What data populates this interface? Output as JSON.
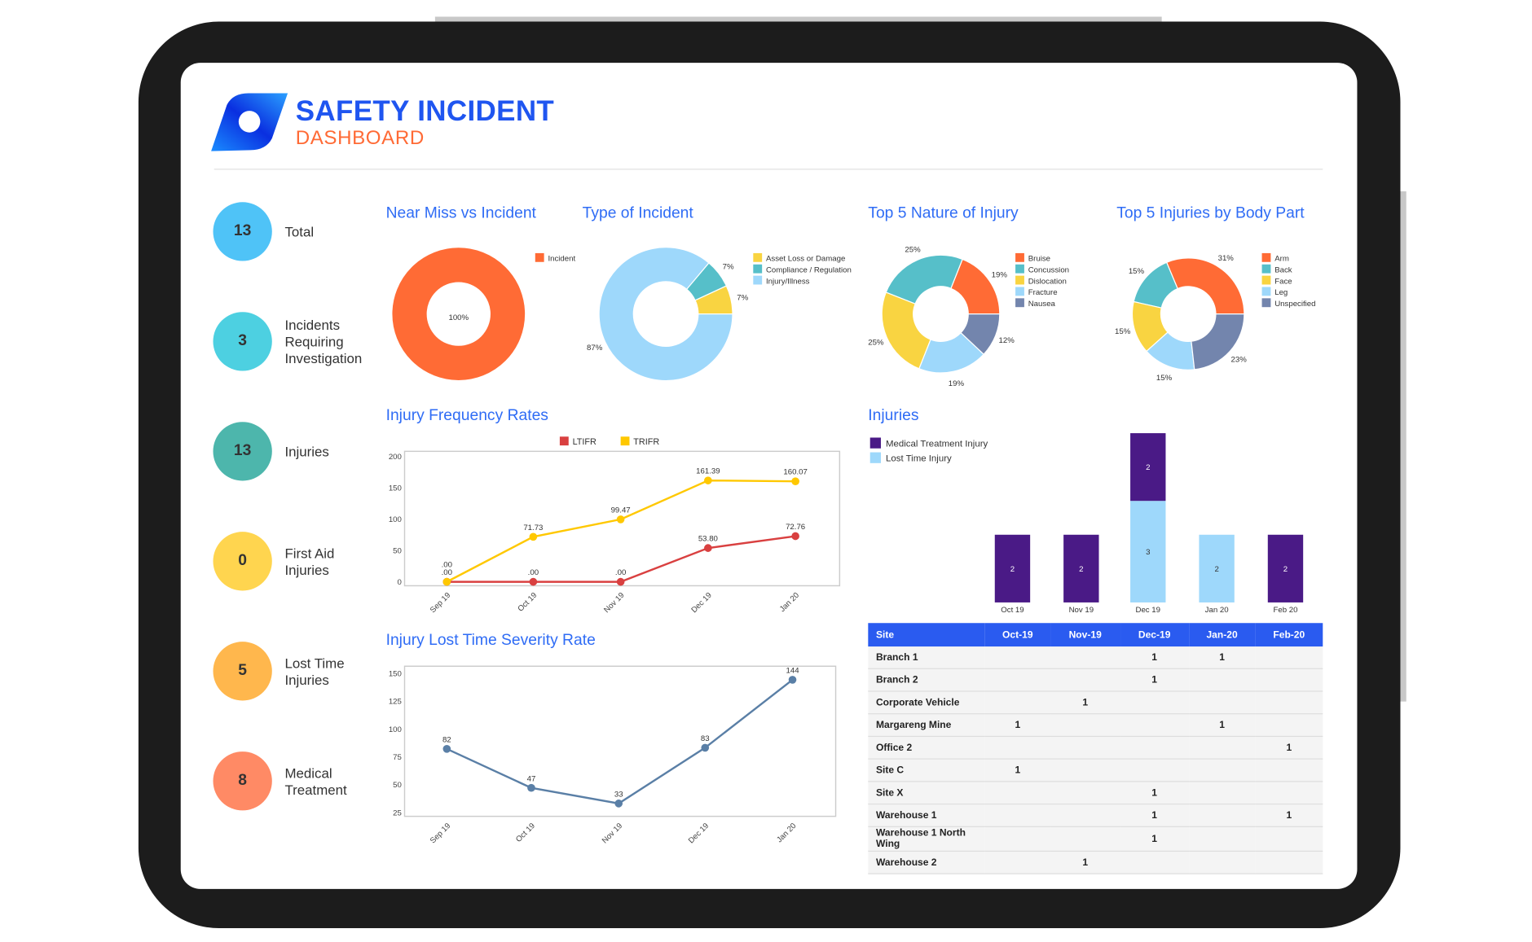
{
  "header": {
    "title": "SAFETY INCIDENT",
    "subtitle": "DASHBOARD"
  },
  "colors": {
    "brand_blue": "#1f55f0",
    "brand_orange": "#ff6a35",
    "section_title": "#2f6cf5",
    "table_header": "#2a5bf0"
  },
  "kpis": [
    {
      "value": "13",
      "label": "Total",
      "color": "#4fc3f7"
    },
    {
      "value": "3",
      "label": "Incidents Requiring Investigation",
      "color": "#4dd0e1"
    },
    {
      "value": "13",
      "label": "Injuries",
      "color": "#4db6ac"
    },
    {
      "value": "0",
      "label": "First Aid Injuries",
      "color": "#ffd54f"
    },
    {
      "value": "5",
      "label": "Lost Time Injuries",
      "color": "#ffb74d"
    },
    {
      "value": "8",
      "label": "Medical Treatment",
      "color": "#ff8a65"
    }
  ],
  "chart_data": [
    {
      "type": "pie",
      "title": "Near Miss vs Incident",
      "donut": true,
      "legend": "right",
      "labels": [
        "Incident"
      ],
      "values": [
        100
      ],
      "value_labels": [
        "100%"
      ],
      "colors": [
        "#ff6b35"
      ]
    },
    {
      "type": "pie",
      "title": "Type of Incident",
      "donut": true,
      "legend": "right",
      "labels": [
        "Asset Loss or Damage",
        "Compliance / Regulation",
        "Injury/Illness"
      ],
      "values": [
        7,
        7,
        87
      ],
      "value_labels": [
        "7%",
        "7%",
        "87%"
      ],
      "colors": [
        "#f9d441",
        "#56bfc9",
        "#9ed8fb"
      ]
    },
    {
      "type": "pie",
      "title": "Top 5 Nature of Injury",
      "donut": true,
      "legend": "right",
      "labels": [
        "Bruise",
        "Concussion",
        "Dislocation",
        "Fracture",
        "Nausea"
      ],
      "values": [
        19,
        25,
        25,
        19,
        12
      ],
      "value_labels": [
        "19%",
        "25%",
        "25%",
        "19%",
        "12%"
      ],
      "colors": [
        "#ff6b35",
        "#56bfc9",
        "#f9d441",
        "#9ed8fb",
        "#7385ad"
      ]
    },
    {
      "type": "pie",
      "title": "Top 5 Injuries by Body Part",
      "donut": true,
      "legend": "right",
      "labels": [
        "Arm",
        "Back",
        "Face",
        "Leg",
        "Unspecified"
      ],
      "values": [
        31,
        15,
        15,
        15,
        23
      ],
      "value_labels": [
        "31%",
        "15%",
        "15%",
        "15%",
        "23%"
      ],
      "colors": [
        "#ff6b35",
        "#56bfc9",
        "#f9d441",
        "#9ed8fb",
        "#7385ad"
      ]
    },
    {
      "type": "line",
      "title": "Injury Frequency Rates",
      "legend": "top",
      "categories": [
        "Sep 19",
        "Oct 19",
        "Nov 19",
        "Dec 19",
        "Jan 20"
      ],
      "ylim": [
        0,
        200
      ],
      "yticks": [
        "0",
        "50",
        "100",
        "150",
        "200"
      ],
      "series": [
        {
          "name": "LTIFR",
          "color": "#d94040",
          "values": [
            0,
            0,
            0,
            53.8,
            72.76
          ],
          "labels": [
            ".00",
            ".00",
            ".00",
            "53.80",
            "72.76"
          ]
        },
        {
          "name": "TRIFR",
          "color": "#ffc800",
          "values": [
            0,
            71.73,
            99.47,
            161.39,
            160.07
          ],
          "labels": [
            ".00",
            "71.73",
            "99.47",
            "161.39",
            "160.07"
          ]
        }
      ]
    },
    {
      "type": "line",
      "title": "Injury Lost Time Severity Rate",
      "categories": [
        "Sep 19",
        "Oct 19",
        "Nov 19",
        "Dec 19",
        "Jan 20"
      ],
      "ylim": [
        25,
        150
      ],
      "yticks": [
        "25",
        "50",
        "75",
        "100",
        "125",
        "150"
      ],
      "series": [
        {
          "color": "#5a7fa6",
          "values": [
            82,
            47,
            33,
            83,
            144
          ],
          "labels": [
            "82",
            "47",
            "33",
            "83",
            "144"
          ]
        }
      ]
    },
    {
      "type": "bar",
      "stacked": true,
      "title": "Injuries",
      "legend": "top-left",
      "categories": [
        "Oct 19",
        "Nov 19",
        "Dec 19",
        "Jan 20",
        "Feb 20"
      ],
      "series": [
        {
          "name": "Medical Treatment Injury",
          "color": "#4a1a86",
          "values": [
            2,
            2,
            2,
            0,
            2
          ]
        },
        {
          "name": "Lost Time Injury",
          "color": "#9ed8fb",
          "values": [
            0,
            0,
            3,
            2,
            0
          ]
        }
      ]
    },
    {
      "type": "table",
      "columns": [
        "Site",
        "Oct-19",
        "Nov-19",
        "Dec-19",
        "Jan-20",
        "Feb-20"
      ],
      "rows": [
        [
          "Branch 1",
          "",
          "",
          "1",
          "1",
          ""
        ],
        [
          "Branch 2",
          "",
          "",
          "1",
          "",
          ""
        ],
        [
          "Corporate Vehicle",
          "",
          "1",
          "",
          "",
          ""
        ],
        [
          "Margareng Mine",
          "1",
          "",
          "",
          "1",
          ""
        ],
        [
          "Office 2",
          "",
          "",
          "",
          "",
          "1"
        ],
        [
          "Site C",
          "1",
          "",
          "",
          "",
          ""
        ],
        [
          "Site X",
          "",
          "",
          "1",
          "",
          ""
        ],
        [
          "Warehouse 1",
          "",
          "",
          "1",
          "",
          "1"
        ],
        [
          "Warehouse 1 North Wing",
          "",
          "",
          "1",
          "",
          ""
        ],
        [
          "Warehouse 2",
          "",
          "1",
          "",
          "",
          ""
        ]
      ]
    }
  ]
}
